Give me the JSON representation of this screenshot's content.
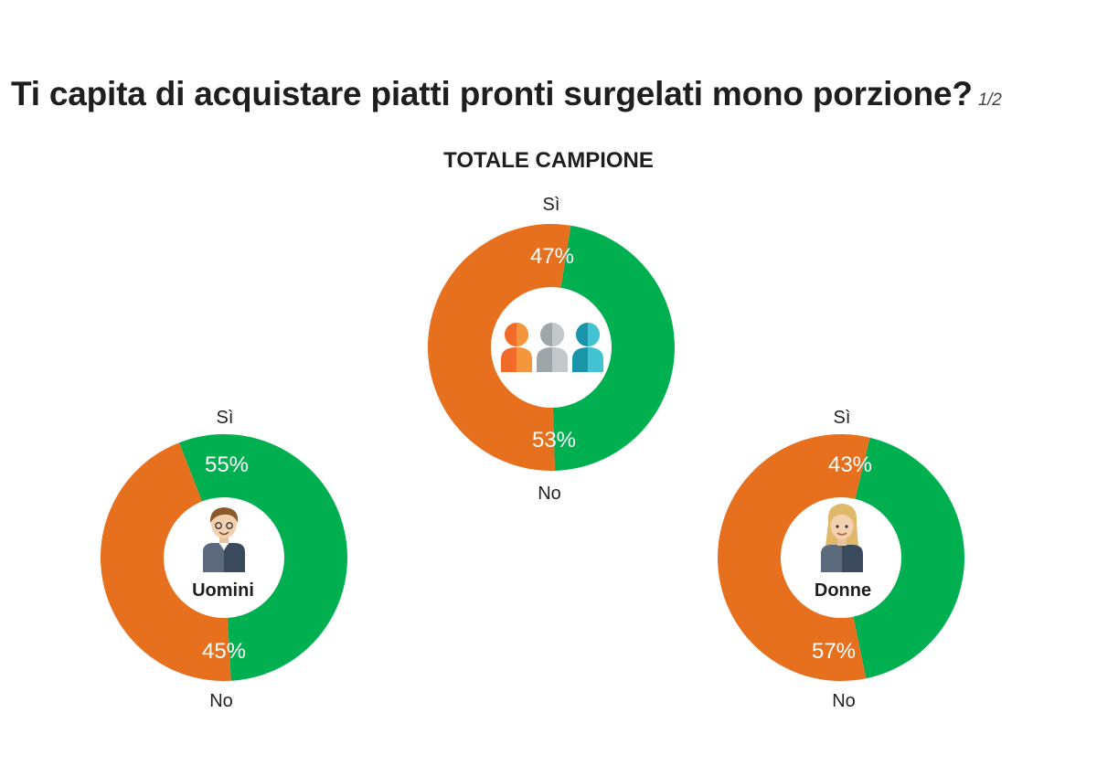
{
  "page": {
    "title": "Ti capita di acquistare piatti pronti surgelati mono porzione?",
    "page_indicator": "1/2",
    "subtitle": "TOTALE CAMPIONE"
  },
  "colors": {
    "yes": "#00b050",
    "no": "#e6701e"
  },
  "chart_data": [
    {
      "type": "pie",
      "variant": "donut",
      "center_icon": "group-people-icon",
      "center_label": "",
      "categories": [
        "Sì",
        "No"
      ],
      "values": [
        47,
        53
      ],
      "value_labels": [
        "47%",
        "53%"
      ]
    },
    {
      "type": "pie",
      "variant": "donut",
      "center_icon": "man-avatar-icon",
      "center_label": "Uomini",
      "categories": [
        "Sì",
        "No"
      ],
      "values": [
        55,
        45
      ],
      "value_labels": [
        "55%",
        "45%"
      ]
    },
    {
      "type": "pie",
      "variant": "donut",
      "center_icon": "woman-avatar-icon",
      "center_label": "Donne",
      "categories": [
        "Sì",
        "No"
      ],
      "values": [
        43,
        57
      ],
      "value_labels": [
        "43%",
        "57%"
      ]
    }
  ]
}
